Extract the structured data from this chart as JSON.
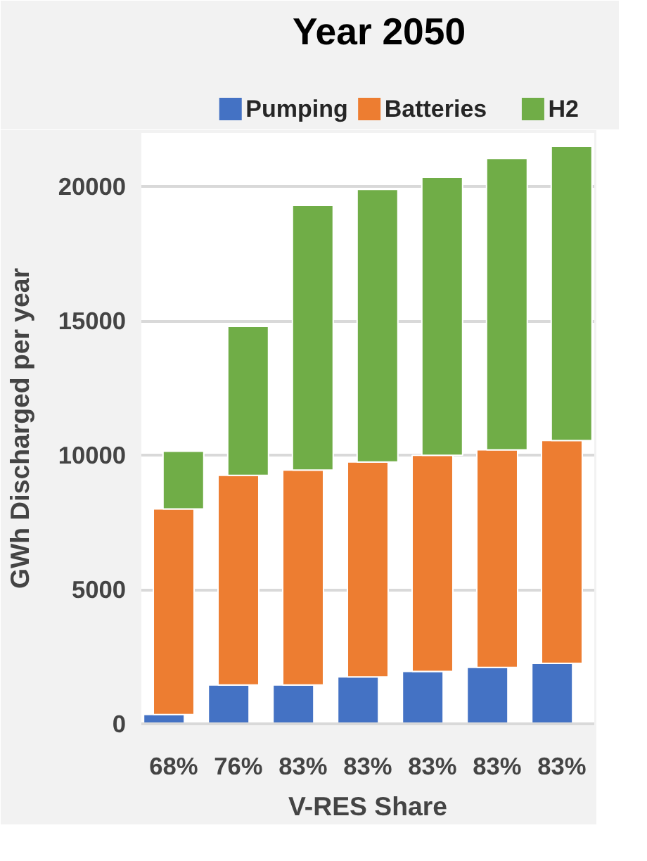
{
  "chart_data": {
    "type": "bar",
    "title": "Year 2050",
    "xlabel": "V-RES Share",
    "ylabel": "GWh Discharged per year",
    "categories": [
      "68%",
      "76%",
      "83%",
      "83%",
      "83%",
      "83%",
      "83%"
    ],
    "stacked": true,
    "series": [
      {
        "name": "Pumping",
        "color": "#4472c4",
        "values": [
          350,
          1450,
          1450,
          1750,
          1950,
          2100,
          2250
        ]
      },
      {
        "name": "Batteries",
        "color": "#ed7d31",
        "values": [
          7650,
          7800,
          8000,
          8000,
          8050,
          8100,
          8300
        ]
      },
      {
        "name": "H2",
        "color": "#70ad47",
        "values": [
          2150,
          5550,
          9850,
          10150,
          10350,
          10850,
          10950
        ]
      }
    ],
    "ylim": [
      0,
      22000
    ],
    "yticks": [
      0,
      5000,
      10000,
      15000,
      20000
    ],
    "grid": "y",
    "legend": "top"
  }
}
